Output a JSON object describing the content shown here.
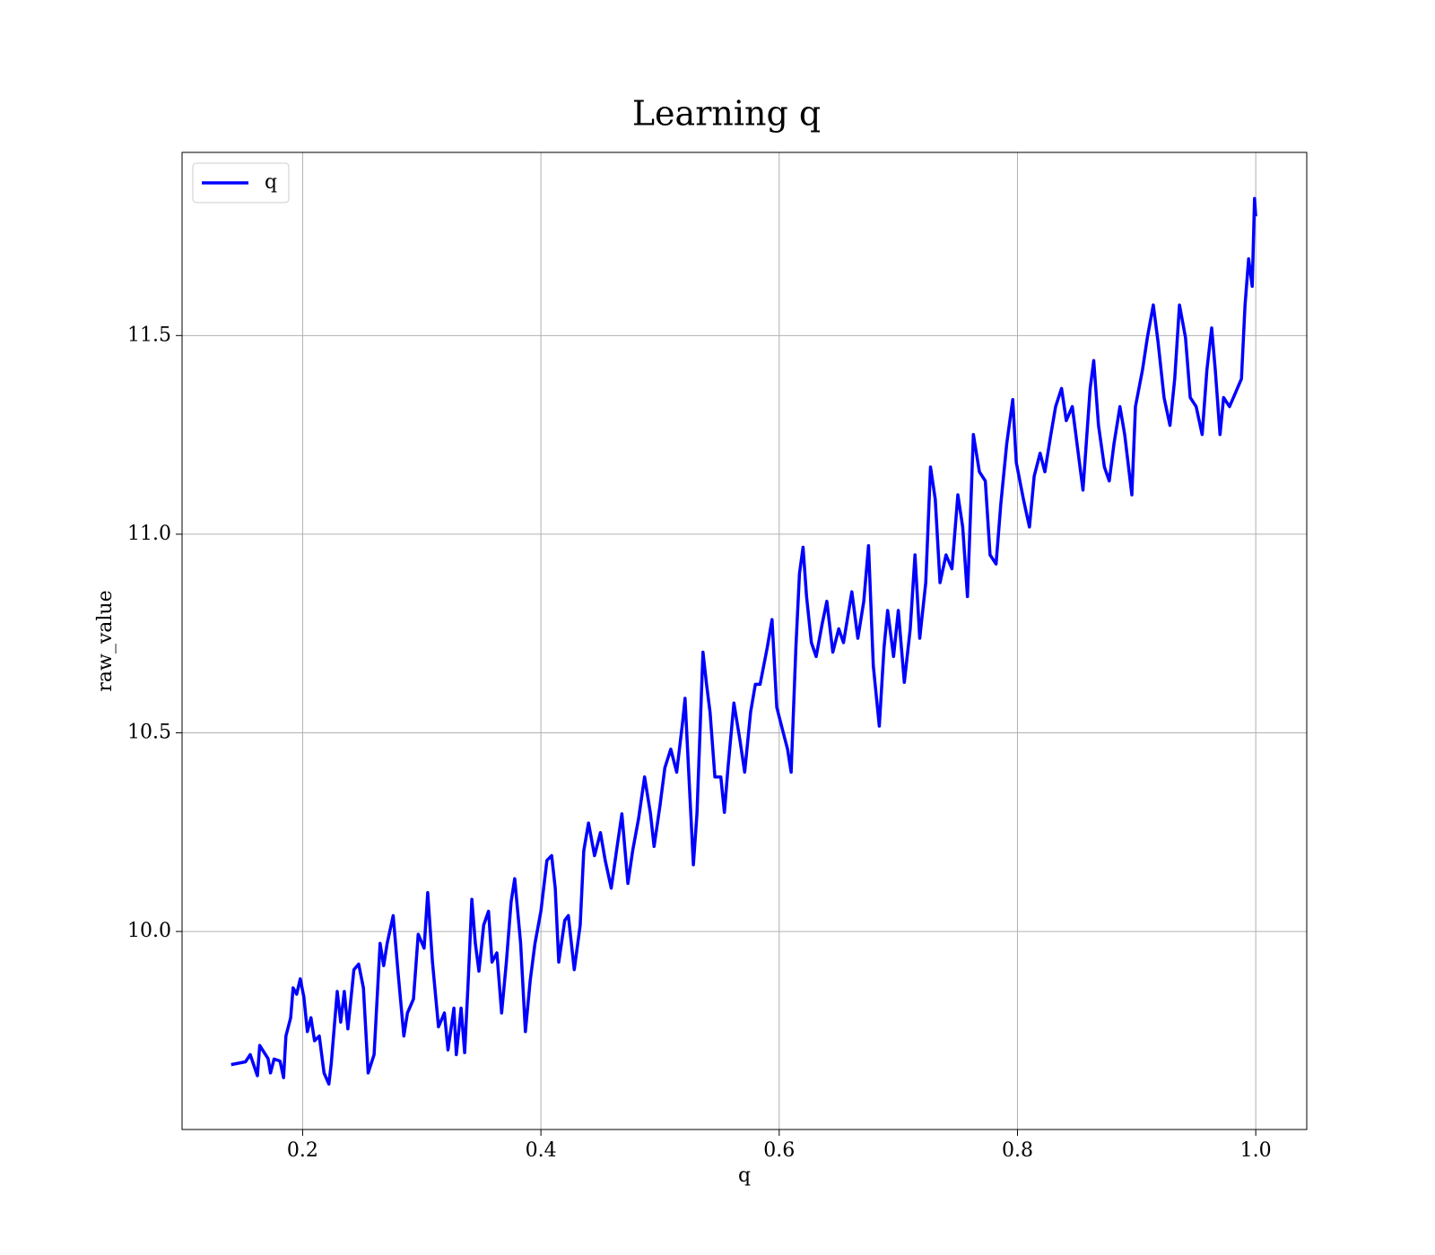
{
  "chart_data": {
    "type": "line",
    "title": "Learning q",
    "x_label": "q",
    "y_label": "raw_value",
    "x": [
      0.14,
      0.152,
      0.156,
      0.162,
      0.164,
      0.171,
      0.173,
      0.176,
      0.181,
      0.184,
      0.186,
      0.19,
      0.192,
      0.195,
      0.198,
      0.201,
      0.204,
      0.207,
      0.21,
      0.214,
      0.218,
      0.222,
      0.224,
      0.229,
      0.232,
      0.235,
      0.238,
      0.243,
      0.247,
      0.251,
      0.255,
      0.26,
      0.265,
      0.268,
      0.271,
      0.276,
      0.28,
      0.285,
      0.288,
      0.293,
      0.297,
      0.302,
      0.305,
      0.309,
      0.314,
      0.319,
      0.322,
      0.327,
      0.329,
      0.333,
      0.336,
      0.339,
      0.342,
      0.345,
      0.348,
      0.352,
      0.356,
      0.359,
      0.363,
      0.367,
      0.371,
      0.375,
      0.378,
      0.383,
      0.387,
      0.391,
      0.395,
      0.4,
      0.405,
      0.409,
      0.412,
      0.415,
      0.42,
      0.423,
      0.428,
      0.433,
      0.436,
      0.44,
      0.445,
      0.45,
      0.454,
      0.459,
      0.464,
      0.468,
      0.473,
      0.477,
      0.482,
      0.487,
      0.492,
      0.495,
      0.5,
      0.504,
      0.509,
      0.514,
      0.519,
      0.521,
      0.525,
      0.528,
      0.531,
      0.536,
      0.539,
      0.542,
      0.546,
      0.551,
      0.554,
      0.557,
      0.562,
      0.567,
      0.571,
      0.576,
      0.58,
      0.584,
      0.59,
      0.594,
      0.598,
      0.603,
      0.607,
      0.61,
      0.614,
      0.617,
      0.62,
      0.623,
      0.627,
      0.631,
      0.636,
      0.64,
      0.645,
      0.65,
      0.654,
      0.661,
      0.666,
      0.671,
      0.675,
      0.679,
      0.684,
      0.688,
      0.691,
      0.696,
      0.7,
      0.705,
      0.71,
      0.714,
      0.718,
      0.723,
      0.727,
      0.731,
      0.735,
      0.74,
      0.745,
      0.75,
      0.754,
      0.758,
      0.763,
      0.768,
      0.773,
      0.777,
      0.782,
      0.786,
      0.791,
      0.796,
      0.799,
      0.805,
      0.81,
      0.814,
      0.819,
      0.823,
      0.828,
      0.832,
      0.837,
      0.841,
      0.846,
      0.852,
      0.855,
      0.861,
      0.864,
      0.868,
      0.873,
      0.877,
      0.881,
      0.886,
      0.89,
      0.896,
      0.899,
      0.905,
      0.909,
      0.914,
      0.918,
      0.923,
      0.928,
      0.932,
      0.936,
      0.941,
      0.945,
      0.95,
      0.955,
      0.959,
      0.963,
      0.966,
      0.97,
      0.973,
      0.978,
      0.983,
      0.988,
      0.991,
      0.994,
      0.997,
      0.999,
      1.0
    ],
    "series": [
      {
        "name": "q",
        "color": "#0000ff",
        "values": [
          9.665,
          9.672,
          9.69,
          9.637,
          9.713,
          9.68,
          9.644,
          9.679,
          9.674,
          9.632,
          9.737,
          9.783,
          9.858,
          9.842,
          9.881,
          9.835,
          9.748,
          9.783,
          9.725,
          9.737,
          9.644,
          9.616,
          9.667,
          9.849,
          9.772,
          9.849,
          9.755,
          9.904,
          9.918,
          9.858,
          9.644,
          9.69,
          9.97,
          9.914,
          9.97,
          10.04,
          9.9,
          9.737,
          9.795,
          9.83,
          9.993,
          9.958,
          10.098,
          9.923,
          9.76,
          9.795,
          9.702,
          9.807,
          9.69,
          9.807,
          9.695,
          9.877,
          10.081,
          9.97,
          9.9,
          10.016,
          10.051,
          9.923,
          9.946,
          9.795,
          9.923,
          10.075,
          10.133,
          9.97,
          9.748,
          9.877,
          9.97,
          10.051,
          10.179,
          10.191,
          10.109,
          9.923,
          10.028,
          10.04,
          9.904,
          10.016,
          10.203,
          10.273,
          10.191,
          10.249,
          10.179,
          10.109,
          10.214,
          10.296,
          10.121,
          10.203,
          10.284,
          10.389,
          10.296,
          10.214,
          10.319,
          10.412,
          10.459,
          10.401,
          10.529,
          10.587,
          10.342,
          10.168,
          10.296,
          10.703,
          10.622,
          10.552,
          10.389,
          10.389,
          10.3,
          10.412,
          10.575,
          10.482,
          10.401,
          10.552,
          10.622,
          10.622,
          10.715,
          10.785,
          10.564,
          10.505,
          10.459,
          10.401,
          10.715,
          10.901,
          10.967,
          10.843,
          10.727,
          10.692,
          10.773,
          10.831,
          10.703,
          10.762,
          10.727,
          10.855,
          10.738,
          10.831,
          10.971,
          10.669,
          10.517,
          10.715,
          10.808,
          10.692,
          10.808,
          10.627,
          10.762,
          10.948,
          10.738,
          10.878,
          11.169,
          11.088,
          10.878,
          10.948,
          10.913,
          11.099,
          11.018,
          10.843,
          11.251,
          11.157,
          11.134,
          10.948,
          10.925,
          11.076,
          11.228,
          11.339,
          11.181,
          11.088,
          11.018,
          11.146,
          11.204,
          11.157,
          11.251,
          11.321,
          11.367,
          11.286,
          11.321,
          11.181,
          11.111,
          11.367,
          11.437,
          11.274,
          11.169,
          11.134,
          11.228,
          11.321,
          11.251,
          11.099,
          11.321,
          11.414,
          11.495,
          11.577,
          11.484,
          11.344,
          11.274,
          11.391,
          11.577,
          11.495,
          11.344,
          11.321,
          11.251,
          11.414,
          11.519,
          11.414,
          11.251,
          11.344,
          11.321,
          11.356,
          11.391,
          11.577,
          11.693,
          11.624,
          11.845,
          11.8
        ]
      }
    ],
    "xlim": [
      0.0988,
      1.0428
    ],
    "ylim": [
      9.5016,
      11.961
    ],
    "xticks": [
      0.2,
      0.4,
      0.6,
      0.8,
      {
        "value": 1.0,
        "label": "1.0"
      }
    ],
    "yticks": [
      {
        "value": 10.0,
        "label": "10.0"
      },
      10.5,
      {
        "value": 11.0,
        "label": "11.0"
      },
      11.5
    ],
    "grid": true,
    "legend": "upper-left"
  }
}
